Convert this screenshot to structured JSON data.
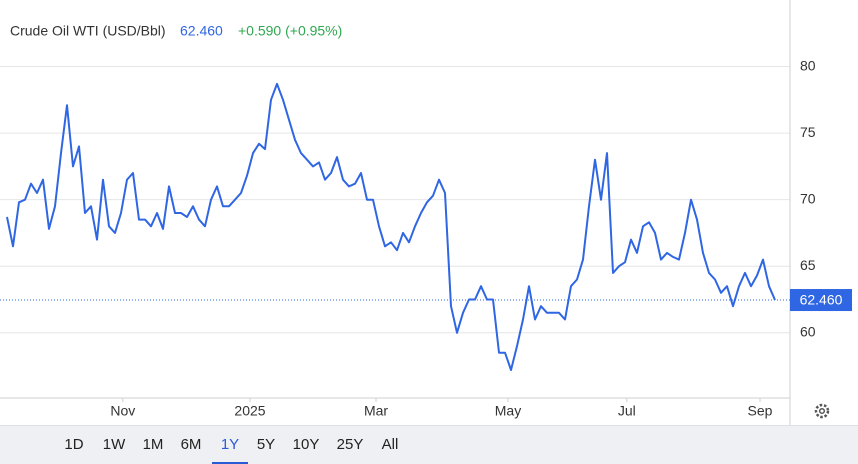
{
  "chart_data": {
    "type": "line",
    "title": "Crude Oil WTI (USD/Bbl)",
    "last": {
      "value": 62.46,
      "label": "62.460"
    },
    "change": "+0.590 (+0.95%)",
    "x": [
      0,
      1,
      2,
      3,
      4,
      5,
      6,
      7,
      8,
      9,
      10,
      11,
      12,
      13,
      14,
      15,
      16,
      17,
      18,
      19,
      20,
      21,
      22,
      23,
      24,
      25,
      26,
      27,
      28,
      29,
      30,
      31,
      32,
      33,
      34,
      35,
      36,
      37,
      38,
      39,
      40,
      41,
      42,
      43,
      44,
      45,
      46,
      47,
      48,
      49,
      50,
      51,
      52,
      53,
      54,
      55,
      56,
      57,
      58,
      59,
      60,
      61,
      62,
      63,
      64,
      65,
      66,
      67,
      68,
      69,
      70,
      71,
      72,
      73,
      74,
      75,
      76,
      77,
      78,
      79,
      80,
      81,
      82,
      83,
      84,
      85,
      86,
      87,
      88,
      89,
      90,
      91,
      92,
      93,
      94,
      95,
      96,
      97,
      98,
      99,
      100,
      101,
      102,
      103,
      104,
      105,
      106,
      107,
      108,
      109,
      110,
      111,
      112,
      113,
      114,
      115,
      116,
      117,
      118,
      119,
      120,
      121,
      122,
      123,
      124,
      125,
      126,
      127,
      128
    ],
    "series": [
      {
        "name": "Crude Oil WTI",
        "color": "#2f66e3",
        "values": [
          68.7,
          66.5,
          69.8,
          70.0,
          71.2,
          70.5,
          71.5,
          67.8,
          69.5,
          73.5,
          77.1,
          72.5,
          74.0,
          69.0,
          69.5,
          67.0,
          71.5,
          68.0,
          67.5,
          69.0,
          71.5,
          72.0,
          68.5,
          68.5,
          68.0,
          69.0,
          67.8,
          71.0,
          69.0,
          69.0,
          68.7,
          69.5,
          68.5,
          68.0,
          70.0,
          71.0,
          69.5,
          69.5,
          70.0,
          70.5,
          71.8,
          73.5,
          74.2,
          73.8,
          77.5,
          78.7,
          77.5,
          76.0,
          74.5,
          73.5,
          73.0,
          72.5,
          72.8,
          71.5,
          72.0,
          73.2,
          71.5,
          71.0,
          71.2,
          72.0,
          70.0,
          70.0,
          68.0,
          66.5,
          66.8,
          66.2,
          67.5,
          66.8,
          68.0,
          69.0,
          69.8,
          70.3,
          71.5,
          70.5,
          62.0,
          60.0,
          61.5,
          62.5,
          62.5,
          63.5,
          62.5,
          62.5,
          58.5,
          58.5,
          57.2,
          59.0,
          61.0,
          63.5,
          61.0,
          62.0,
          61.5,
          61.5,
          61.5,
          61.0,
          63.5,
          64.0,
          65.5,
          69.5,
          73.0,
          70.0,
          73.5,
          64.5,
          65.0,
          65.3,
          67.0,
          66.0,
          68.0,
          68.3,
          67.5,
          65.5,
          66.0,
          65.7,
          65.5,
          67.5,
          70.0,
          68.5,
          66.0,
          64.5,
          64.0,
          63.0,
          63.5,
          62.0,
          63.5,
          64.5,
          63.5,
          64.3,
          65.5,
          63.5,
          62.46
        ]
      }
    ],
    "xlim": [
      0,
      130.5
    ],
    "xticks": [
      {
        "value": 19.3,
        "label": "Nov"
      },
      {
        "value": 40.5,
        "label": "2025"
      },
      {
        "value": 61.5,
        "label": "Mar"
      },
      {
        "value": 83.5,
        "label": "May"
      },
      {
        "value": 103.3,
        "label": "Jul"
      },
      {
        "value": 125.5,
        "label": "Sep"
      }
    ],
    "ylim": [
      55.1,
      85.0
    ],
    "yticks": [
      60,
      65,
      70,
      75,
      80
    ],
    "grid": true
  },
  "range_selector": {
    "options": [
      "1D",
      "1W",
      "1M",
      "6M",
      "1Y",
      "5Y",
      "10Y",
      "25Y",
      "All"
    ],
    "selected": "1Y"
  }
}
